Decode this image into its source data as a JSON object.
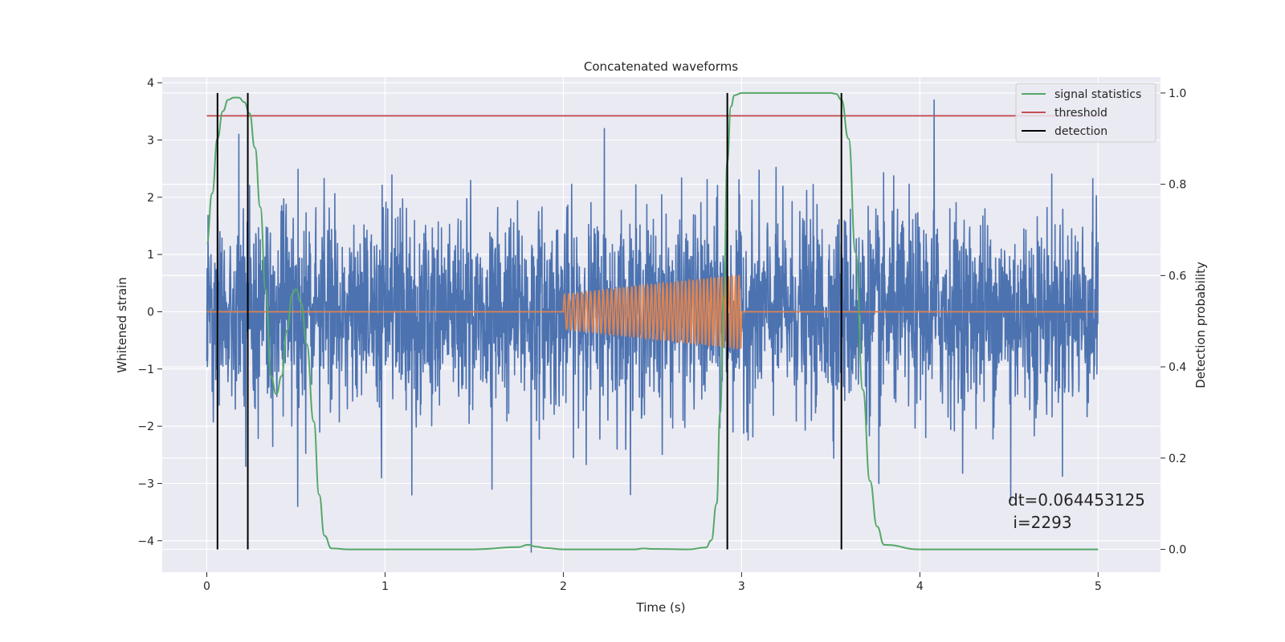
{
  "chart_data": {
    "type": "line",
    "title": "Concatenated waveforms",
    "xlabel": "Time (s)",
    "ylabel": "Whitened strain",
    "y2label": "Detection probability",
    "xlim": [
      -0.25,
      5.35
    ],
    "ylim": [
      -4.55,
      4.1
    ],
    "y2lim": [
      -0.05,
      1.035
    ],
    "x_ticks": [
      0,
      1,
      2,
      3,
      4,
      5
    ],
    "y_ticks": [
      4,
      3,
      2,
      1,
      0,
      -1,
      -2,
      -3,
      -4
    ],
    "y_tick_labels": [
      "4",
      "3",
      "2",
      "1",
      "0",
      "−1",
      "−2",
      "−3",
      "−4"
    ],
    "y2_ticks": [
      0.0,
      0.2,
      0.4,
      0.6,
      0.8,
      1.0
    ],
    "y2_tick_labels": [
      "0.0",
      "0.2",
      "0.4",
      "0.6",
      "0.8",
      "1.0"
    ],
    "grid": true,
    "legend_position": "top-right",
    "legend": [
      {
        "label": "signal statistics",
        "color": "#55a868"
      },
      {
        "label": "threshold",
        "color": "#c44e52"
      },
      {
        "label": "detection",
        "color": "#000000"
      }
    ],
    "annotation": [
      "dt=0.064453125",
      " i=2293"
    ],
    "colors": {
      "noise": "#4c72b0",
      "injection": "#dd8452",
      "signal_statistics": "#55a868",
      "threshold": "#c44e52",
      "detection": "#000000",
      "plot_bg": "#eaeaf2",
      "grid": "#ffffff"
    },
    "series": [
      {
        "kind": "noise",
        "axis": "left",
        "x_range": [
          0,
          5
        ],
        "amplitude_range": [
          -4.2,
          3.7
        ],
        "peaks": [
          {
            "x": 4.08,
            "y": 3.7
          },
          {
            "x": 2.23,
            "y": 3.2
          },
          {
            "x": 0.18,
            "y": 3.1
          },
          {
            "x": 1.82,
            "y": -4.2
          },
          {
            "x": 0.51,
            "y": -3.4
          },
          {
            "x": 4.51,
            "y": -3.3
          },
          {
            "x": 3.77,
            "y": -3.0
          },
          {
            "x": 1.15,
            "y": -3.2
          },
          {
            "x": 0.98,
            "y": -2.9
          },
          {
            "x": 1.6,
            "y": -3.1
          }
        ]
      },
      {
        "kind": "injection",
        "axis": "left",
        "x_range": [
          0,
          5
        ],
        "chirp_window": [
          2.0,
          3.0
        ],
        "amplitude_start": 0.3,
        "amplitude_end": 0.65,
        "cycles": 40
      },
      {
        "name": "signal statistics",
        "axis": "right",
        "x": [
          0.0,
          0.03,
          0.06,
          0.09,
          0.12,
          0.15,
          0.18,
          0.21,
          0.24,
          0.27,
          0.3,
          0.33,
          0.36,
          0.39,
          0.42,
          0.45,
          0.48,
          0.5,
          0.53,
          0.56,
          0.6,
          0.63,
          0.66,
          0.7,
          0.8,
          1.0,
          1.5,
          1.75,
          1.8,
          1.85,
          1.9,
          2.0,
          2.4,
          2.45,
          2.5,
          2.7,
          2.8,
          2.83,
          2.86,
          2.88,
          2.9,
          2.92,
          2.94,
          2.96,
          3.0,
          3.2,
          3.5,
          3.53,
          3.56,
          3.6,
          3.64,
          3.68,
          3.72,
          3.76,
          3.8,
          4.0,
          5.0
        ],
        "y": [
          0.67,
          0.78,
          0.9,
          0.96,
          0.985,
          0.99,
          0.99,
          0.98,
          0.955,
          0.88,
          0.75,
          0.57,
          0.38,
          0.34,
          0.38,
          0.48,
          0.56,
          0.57,
          0.54,
          0.45,
          0.28,
          0.12,
          0.03,
          0.002,
          0.0,
          0.0,
          0.0,
          0.005,
          0.01,
          0.006,
          0.003,
          0.0,
          0.0,
          0.002,
          0.001,
          0.0,
          0.004,
          0.02,
          0.1,
          0.3,
          0.55,
          0.85,
          0.97,
          0.995,
          1.0,
          1.0,
          1.0,
          0.998,
          0.985,
          0.9,
          0.65,
          0.35,
          0.15,
          0.05,
          0.01,
          0.0,
          0.0
        ]
      },
      {
        "name": "threshold",
        "axis": "right",
        "x": [
          0,
          5
        ],
        "y": [
          0.95,
          0.95
        ]
      }
    ],
    "detections": [
      0.06,
      0.23,
      2.92,
      3.56
    ]
  }
}
